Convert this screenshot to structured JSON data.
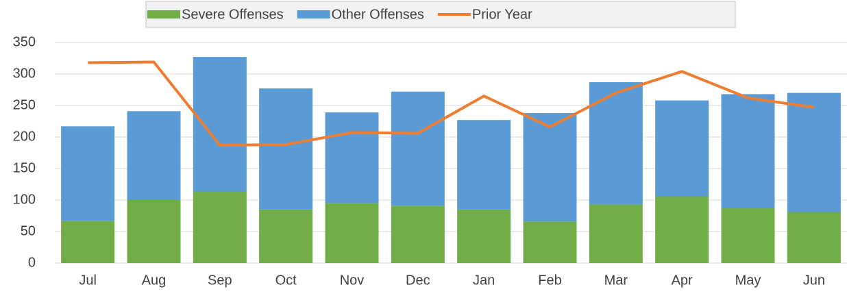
{
  "chart_data": {
    "type": "stacked-bar-line",
    "categories": [
      "Jul",
      "Aug",
      "Sep",
      "Oct",
      "Nov",
      "Dec",
      "Jan",
      "Feb",
      "Mar",
      "Apr",
      "May",
      "Jun"
    ],
    "series": [
      {
        "name": "Severe Offenses",
        "color": "#70ad47",
        "values": [
          67,
          100,
          113,
          85,
          95,
          91,
          85,
          66,
          93,
          106,
          87,
          81
        ]
      },
      {
        "name": "Other Offenses",
        "color": "#5b9bd5",
        "values": [
          150,
          141,
          214,
          192,
          144,
          181,
          142,
          172,
          194,
          152,
          181,
          189
        ]
      },
      {
        "name": "Prior Year",
        "color": "#ed7d31",
        "type": "line",
        "values": [
          318,
          319,
          187,
          188,
          207,
          206,
          265,
          216,
          270,
          304,
          262,
          247
        ]
      }
    ],
    "ylim": [
      0,
      350
    ],
    "yticks": [
      0,
      50,
      100,
      150,
      200,
      250,
      300,
      350
    ],
    "grid": true,
    "legend": "top"
  }
}
